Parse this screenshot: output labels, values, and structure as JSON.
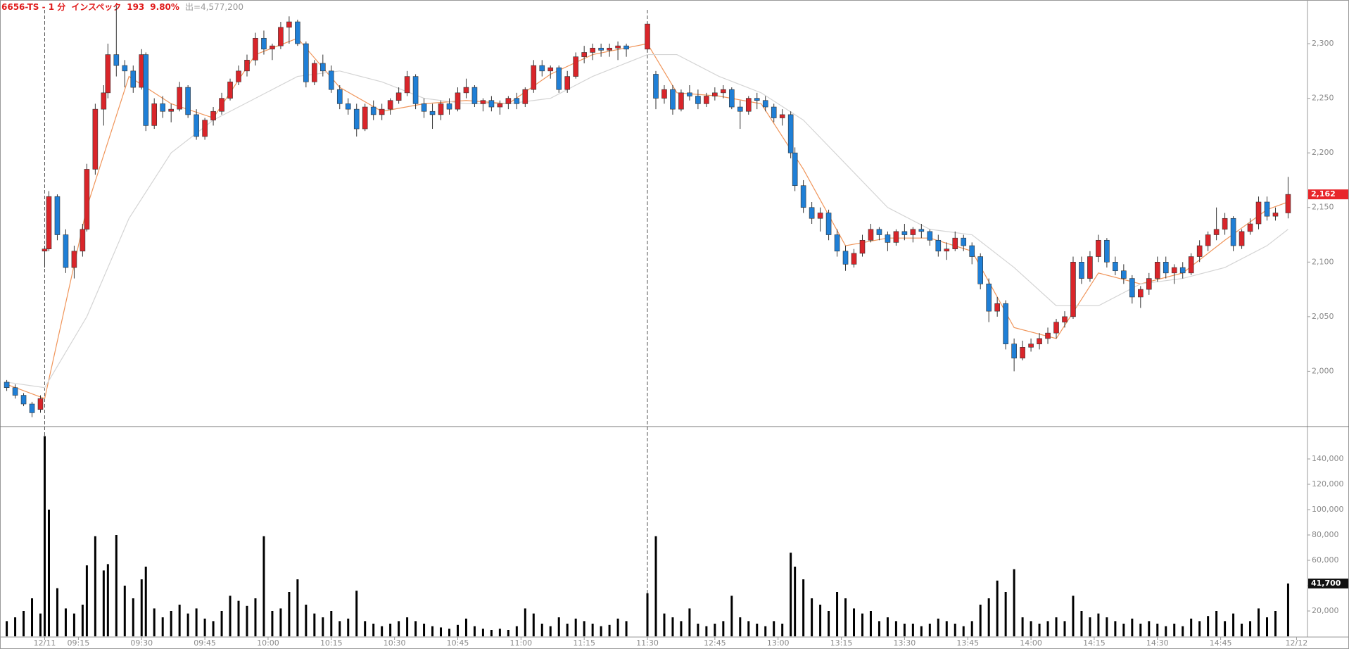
{
  "header": {
    "title": "6656-TS - 1 分",
    "name": "インスペック",
    "change": "193",
    "change_pct": "9.80%",
    "volume_text": "出=4,577,200"
  },
  "chart_data": {
    "type": "candlestick",
    "up_color": "#d9252a",
    "down_color": "#1f7fd6",
    "volume_color": "#000000",
    "x": [
      -9,
      -7,
      -5,
      -3,
      -1,
      0,
      1,
      3,
      5,
      7,
      9,
      10,
      12,
      14,
      15,
      17,
      19,
      21,
      23,
      24,
      26,
      28,
      30,
      32,
      34,
      36,
      38,
      40,
      42,
      44,
      46,
      48,
      50,
      52,
      54,
      56,
      58,
      60,
      62,
      64,
      66,
      68,
      70,
      72,
      74,
      76,
      78,
      80,
      82,
      84,
      86,
      88,
      90,
      92,
      94,
      96,
      98,
      100,
      102,
      104,
      106,
      108,
      110,
      112,
      114,
      116,
      118,
      120,
      122,
      124,
      126,
      128,
      130,
      132,
      134,
      136,
      138,
      143,
      145,
      147,
      149,
      151,
      153,
      155,
      157,
      159,
      161,
      163,
      165,
      167,
      169,
      171,
      173,
      175,
      177,
      178,
      180,
      182,
      184,
      186,
      188,
      190,
      192,
      194,
      196,
      198,
      200,
      202,
      204,
      206,
      208,
      210,
      212,
      214,
      216,
      218,
      220,
      222,
      224,
      226,
      228,
      230,
      232,
      234,
      236,
      238,
      240,
      242,
      244,
      246,
      248,
      250,
      252,
      254,
      256,
      258,
      260,
      262,
      264,
      266,
      268,
      270,
      272,
      274,
      276,
      278,
      280,
      282,
      284,
      286,
      288,
      290,
      292,
      295
    ],
    "open": [
      1990,
      1985,
      1978,
      1970,
      1965,
      2110,
      2112,
      2160,
      2125,
      2095,
      2110,
      2130,
      2185,
      2240,
      2255,
      2290,
      2280,
      2275,
      2260,
      2290,
      2225,
      2245,
      2238,
      2240,
      2260,
      2235,
      2215,
      2230,
      2238,
      2250,
      2265,
      2275,
      2285,
      2305,
      2295,
      2298,
      2315,
      2320,
      2300,
      2265,
      2282,
      2275,
      2258,
      2245,
      2240,
      2222,
      2242,
      2235,
      2240,
      2248,
      2255,
      2270,
      2245,
      2238,
      2235,
      2245,
      2240,
      2255,
      2260,
      2245,
      2248,
      2242,
      2245,
      2250,
      2245,
      2258,
      2280,
      2275,
      2278,
      2258,
      2270,
      2288,
      2292,
      2296,
      2294,
      2296,
      2298,
      2295,
      2272,
      2250,
      2258,
      2240,
      2255,
      2252,
      2245,
      2252,
      2255,
      2258,
      2242,
      2238,
      2250,
      2248,
      2242,
      2232,
      2235,
      2200,
      2170,
      2150,
      2140,
      2145,
      2125,
      2110,
      2098,
      2108,
      2120,
      2130,
      2125,
      2118,
      2128,
      2125,
      2130,
      2128,
      2120,
      2110,
      2112,
      2122,
      2115,
      2105,
      2080,
      2055,
      2062,
      2025,
      2012,
      2022,
      2025,
      2030,
      2035,
      2045,
      2050,
      2100,
      2085,
      2105,
      2120,
      2100,
      2092,
      2085,
      2068,
      2075,
      2085,
      2100,
      2090,
      2095,
      2090,
      2105,
      2115,
      2125,
      2130,
      2140,
      2115,
      2128,
      2135,
      2155,
      2142,
      2145
    ],
    "high": [
      1992,
      1988,
      1980,
      1972,
      1978,
      2115,
      2165,
      2162,
      2130,
      2115,
      2135,
      2190,
      2245,
      2262,
      2300,
      2335,
      2285,
      2280,
      2295,
      2292,
      2250,
      2252,
      2245,
      2265,
      2262,
      2240,
      2232,
      2242,
      2255,
      2268,
      2280,
      2290,
      2310,
      2312,
      2300,
      2320,
      2325,
      2322,
      2302,
      2285,
      2290,
      2280,
      2262,
      2250,
      2245,
      2245,
      2248,
      2245,
      2250,
      2260,
      2275,
      2272,
      2250,
      2245,
      2248,
      2250,
      2260,
      2268,
      2262,
      2250,
      2252,
      2248,
      2252,
      2255,
      2260,
      2285,
      2285,
      2280,
      2280,
      2275,
      2292,
      2298,
      2300,
      2300,
      2300,
      2302,
      2300,
      2320,
      2275,
      2262,
      2262,
      2258,
      2262,
      2258,
      2255,
      2260,
      2262,
      2260,
      2248,
      2252,
      2255,
      2252,
      2245,
      2240,
      2238,
      2205,
      2175,
      2155,
      2150,
      2148,
      2130,
      2115,
      2112,
      2125,
      2135,
      2132,
      2128,
      2130,
      2135,
      2132,
      2135,
      2130,
      2125,
      2118,
      2128,
      2125,
      2118,
      2108,
      2085,
      2068,
      2065,
      2030,
      2028,
      2030,
      2035,
      2040,
      2048,
      2055,
      2105,
      2105,
      2110,
      2125,
      2122,
      2105,
      2098,
      2088,
      2078,
      2090,
      2105,
      2105,
      2098,
      2100,
      2108,
      2120,
      2128,
      2150,
      2145,
      2142,
      2130,
      2140,
      2160,
      2160,
      2150,
      2178
    ],
    "low": [
      1982,
      1975,
      1968,
      1958,
      1962,
      2095,
      2110,
      2120,
      2090,
      2085,
      2105,
      2128,
      2180,
      2225,
      2250,
      2270,
      2260,
      2255,
      2258,
      2220,
      2222,
      2232,
      2228,
      2238,
      2232,
      2212,
      2212,
      2225,
      2235,
      2248,
      2262,
      2270,
      2280,
      2290,
      2285,
      2295,
      2300,
      2298,
      2260,
      2262,
      2270,
      2255,
      2240,
      2235,
      2215,
      2220,
      2230,
      2230,
      2235,
      2245,
      2252,
      2240,
      2232,
      2222,
      2230,
      2235,
      2238,
      2250,
      2242,
      2238,
      2238,
      2235,
      2240,
      2240,
      2242,
      2255,
      2270,
      2268,
      2255,
      2255,
      2268,
      2282,
      2285,
      2288,
      2288,
      2285,
      2288,
      2292,
      2240,
      2245,
      2235,
      2238,
      2248,
      2240,
      2242,
      2248,
      2250,
      2240,
      2222,
      2235,
      2240,
      2238,
      2228,
      2225,
      2195,
      2165,
      2145,
      2135,
      2128,
      2120,
      2105,
      2092,
      2095,
      2105,
      2118,
      2120,
      2110,
      2115,
      2120,
      2118,
      2122,
      2115,
      2105,
      2102,
      2110,
      2110,
      2098,
      2075,
      2045,
      2050,
      2020,
      2000,
      2010,
      2018,
      2020,
      2025,
      2030,
      2040,
      2048,
      2080,
      2082,
      2100,
      2095,
      2088,
      2080,
      2062,
      2058,
      2070,
      2082,
      2085,
      2080,
      2085,
      2088,
      2100,
      2110,
      2120,
      2125,
      2110,
      2112,
      2125,
      2130,
      2138,
      2138,
      2140
    ],
    "close": [
      1985,
      1978,
      1970,
      1962,
      1975,
      2112,
      2160,
      2125,
      2095,
      2110,
      2130,
      2185,
      2240,
      2255,
      2290,
      2280,
      2275,
      2260,
      2290,
      2225,
      2245,
      2238,
      2240,
      2260,
      2235,
      2215,
      2230,
      2238,
      2250,
      2265,
      2275,
      2285,
      2305,
      2295,
      2298,
      2315,
      2320,
      2300,
      2265,
      2282,
      2275,
      2258,
      2245,
      2240,
      2222,
      2242,
      2235,
      2240,
      2248,
      2255,
      2270,
      2245,
      2238,
      2235,
      2245,
      2240,
      2255,
      2260,
      2245,
      2248,
      2242,
      2245,
      2250,
      2245,
      2258,
      2280,
      2275,
      2278,
      2258,
      2270,
      2288,
      2292,
      2296,
      2294,
      2296,
      2298,
      2295,
      2318,
      2250,
      2258,
      2240,
      2255,
      2252,
      2245,
      2252,
      2255,
      2258,
      2242,
      2238,
      2250,
      2248,
      2242,
      2232,
      2235,
      2200,
      2170,
      2150,
      2140,
      2145,
      2125,
      2110,
      2098,
      2108,
      2120,
      2130,
      2125,
      2118,
      2128,
      2125,
      2130,
      2128,
      2120,
      2110,
      2112,
      2122,
      2115,
      2105,
      2080,
      2055,
      2062,
      2025,
      2012,
      2022,
      2025,
      2030,
      2035,
      2045,
      2050,
      2100,
      2085,
      2105,
      2120,
      2100,
      2092,
      2085,
      2068,
      2075,
      2085,
      2100,
      2090,
      2095,
      2090,
      2105,
      2115,
      2125,
      2130,
      2140,
      2115,
      2128,
      2135,
      2155,
      2142,
      2145,
      2162
    ],
    "volume": [
      12000,
      15000,
      20000,
      30000,
      18000,
      158000,
      100000,
      38000,
      22000,
      18000,
      25000,
      56000,
      79000,
      52000,
      57000,
      80000,
      40000,
      30000,
      45000,
      55000,
      22000,
      15000,
      20000,
      25000,
      18000,
      22000,
      14000,
      12000,
      20000,
      32000,
      28000,
      24000,
      30000,
      79000,
      20000,
      22000,
      35000,
      45000,
      25000,
      18000,
      15000,
      20000,
      12000,
      14000,
      36000,
      12000,
      10000,
      8000,
      10000,
      12000,
      15000,
      12000,
      10000,
      8000,
      7000,
      6000,
      9000,
      14000,
      8000,
      6000,
      5000,
      6000,
      5000,
      8000,
      22000,
      18000,
      10000,
      8000,
      15000,
      10000,
      14000,
      12000,
      10000,
      8000,
      9000,
      14000,
      12000,
      34000,
      79000,
      18000,
      15000,
      12000,
      22000,
      10000,
      8000,
      10000,
      12000,
      32000,
      15000,
      12000,
      10000,
      8000,
      12000,
      10000,
      66000,
      55000,
      45000,
      30000,
      25000,
      20000,
      35000,
      30000,
      22000,
      18000,
      20000,
      12000,
      15000,
      12000,
      10000,
      10000,
      8000,
      10000,
      14000,
      12000,
      10000,
      8000,
      12000,
      25000,
      30000,
      44000,
      35000,
      53000,
      15000,
      12000,
      10000,
      12000,
      15000,
      12000,
      32000,
      20000,
      15000,
      18000,
      15000,
      12000,
      10000,
      14000,
      10000,
      12000,
      10000,
      8000,
      10000,
      8000,
      14000,
      12000,
      16000,
      20000,
      12000,
      18000,
      10000,
      12000,
      22000,
      15000,
      20000,
      41700
    ],
    "last_price_label": "2,162",
    "last_volume_label": "41,700",
    "ma_x": [
      -9,
      0,
      10,
      20,
      30,
      40,
      50,
      60,
      70,
      80,
      90,
      100,
      110,
      120,
      130,
      143,
      150,
      160,
      170,
      180,
      190,
      200,
      210,
      220,
      230,
      240,
      250,
      260,
      270,
      280,
      290,
      295
    ],
    "lines": [
      {
        "color": "#f0955a",
        "values": [
          1988,
          1975,
          2150,
          2270,
          2245,
          2232,
          2290,
          2305,
          2260,
          2238,
          2245,
          2248,
          2245,
          2272,
          2290,
          2300,
          2255,
          2252,
          2245,
          2185,
          2115,
          2122,
          2122,
          2110,
          2040,
          2030,
          2090,
          2080,
          2090,
          2120,
          2148,
          2155
        ]
      },
      {
        "color": "#d4d4d4",
        "values": [
          1990,
          1985,
          2050,
          2140,
          2200,
          2230,
          2250,
          2270,
          2275,
          2265,
          2250,
          2245,
          2245,
          2250,
          2270,
          2290,
          2290,
          2270,
          2255,
          2230,
          2190,
          2150,
          2130,
          2125,
          2095,
          2060,
          2060,
          2080,
          2085,
          2095,
          2115,
          2130
        ]
      }
    ],
    "xlim": [
      -10.6,
      299.6
    ],
    "xticks": [
      {
        "value": 0,
        "label": "12/11"
      },
      {
        "value": 8,
        "label": "09:15"
      },
      {
        "value": 23,
        "label": "09:30"
      },
      {
        "value": 38,
        "label": "09:45"
      },
      {
        "value": 53,
        "label": "10:00"
      },
      {
        "value": 68,
        "label": "10:15"
      },
      {
        "value": 83,
        "label": "10:30"
      },
      {
        "value": 98,
        "label": "10:45"
      },
      {
        "value": 113,
        "label": "11:00"
      },
      {
        "value": 128,
        "label": "11:15"
      },
      {
        "value": 143,
        "label": "11:30"
      },
      {
        "value": 159,
        "label": "12:45"
      },
      {
        "value": 174,
        "label": "13:00"
      },
      {
        "value": 189,
        "label": "13:15"
      },
      {
        "value": 204,
        "label": "13:30"
      },
      {
        "value": 219,
        "label": "13:45"
      },
      {
        "value": 234,
        "label": "14:00"
      },
      {
        "value": 249,
        "label": "14:15"
      },
      {
        "value": 264,
        "label": "14:30"
      },
      {
        "value": 279,
        "label": "14:45"
      },
      {
        "value": 297,
        "label": "12/12"
      }
    ],
    "ylim": [
      1950,
      2340
    ],
    "yticks": [
      {
        "value": 2000,
        "label": "2,000"
      },
      {
        "value": 2050,
        "label": "2,050"
      },
      {
        "value": 2100,
        "label": "2,100"
      },
      {
        "value": 2150,
        "label": "2,150"
      },
      {
        "value": 2200,
        "label": "2,200"
      },
      {
        "value": 2250,
        "label": "2,250"
      },
      {
        "value": 2300,
        "label": "2,300"
      }
    ],
    "y2lim": [
      0,
      165000
    ],
    "y2ticks": [
      {
        "value": 20000,
        "label": "20,000"
      },
      {
        "value": 40000,
        "label": "40,000"
      },
      {
        "value": 60000,
        "label": "60,000"
      },
      {
        "value": 80000,
        "label": "80,000"
      },
      {
        "value": 100000,
        "label": "100,000"
      },
      {
        "value": 120000,
        "label": "120,000"
      },
      {
        "value": 140000,
        "label": "140,000"
      }
    ]
  }
}
